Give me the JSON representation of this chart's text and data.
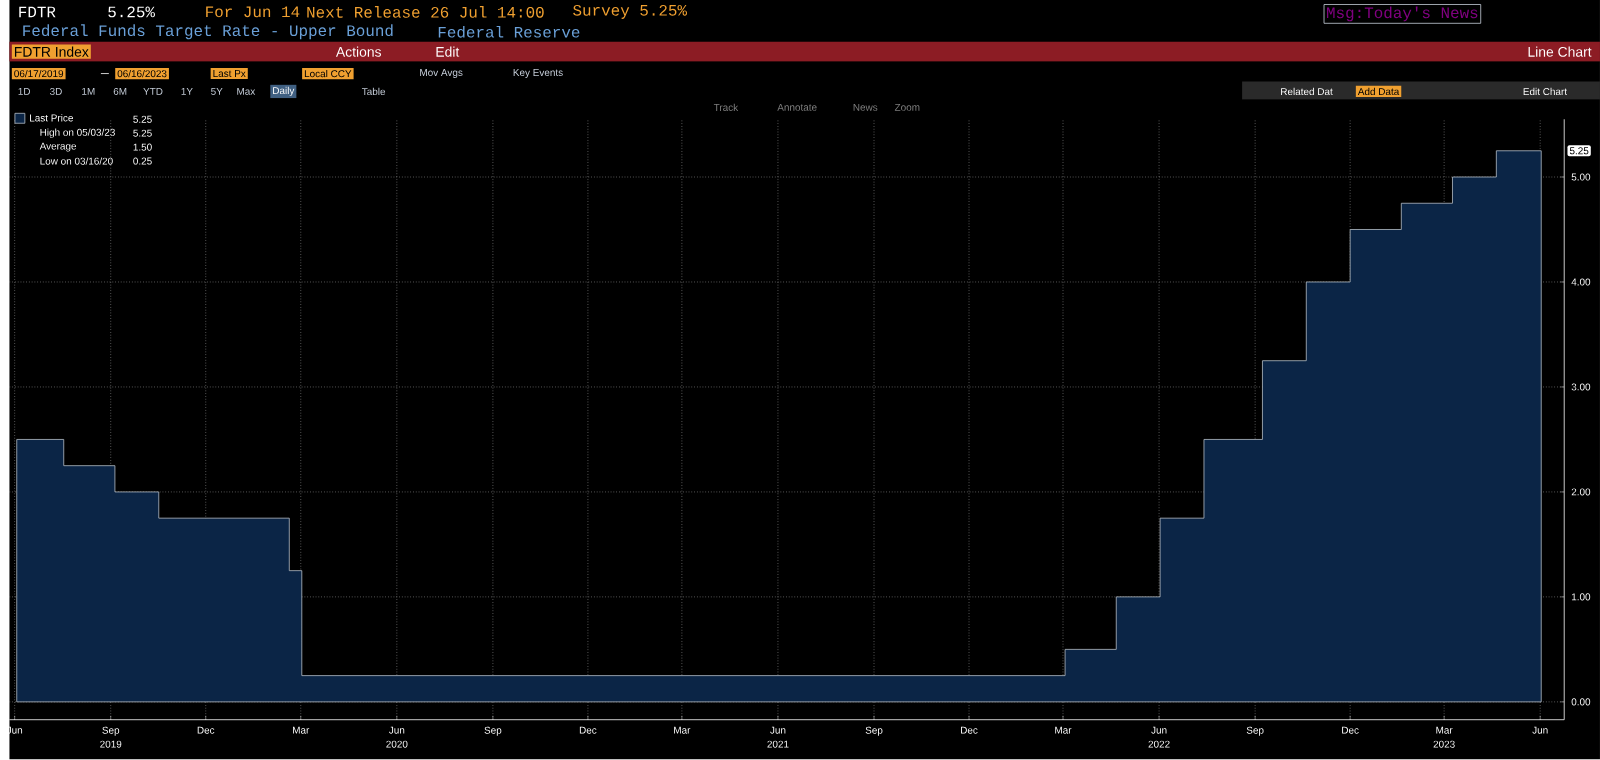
{
  "chart_data": {
    "type": "area",
    "title": "Federal Funds Target Rate - Upper Bound",
    "subtitle": "Federal Reserve",
    "x": [
      "2019-06-17",
      "2019-08-01",
      "2019-09-19",
      "2019-10-31",
      "2020-03-04",
      "2020-03-16",
      "2022-03-17",
      "2022-05-05",
      "2022-06-16",
      "2022-07-28",
      "2022-09-22",
      "2022-11-03",
      "2022-12-15",
      "2023-02-02",
      "2023-03-23",
      "2023-05-04",
      "2023-06-16"
    ],
    "series": [
      {
        "name": "Last Price",
        "color": "#0b2546",
        "values": [
          2.5,
          2.25,
          2.0,
          1.75,
          1.25,
          0.25,
          0.5,
          1.0,
          1.75,
          2.5,
          3.25,
          4.0,
          4.5,
          4.75,
          5.0,
          5.25,
          5.25
        ]
      }
    ],
    "xlim": [
      "2019-06-10",
      "2023-07-08"
    ],
    "xticks": [
      {
        "value": "2019-06-15",
        "label": "Jun"
      },
      {
        "value": "2019-09-15",
        "label": "Sep"
      },
      {
        "value": "2019-12-15",
        "label": "Dec"
      },
      {
        "value": "2020-03-15",
        "label": "Mar"
      },
      {
        "value": "2020-06-15",
        "label": "Jun"
      },
      {
        "value": "2020-09-15",
        "label": "Sep"
      },
      {
        "value": "2020-12-15",
        "label": "Dec"
      },
      {
        "value": "2021-03-15",
        "label": "Mar"
      },
      {
        "value": "2021-06-15",
        "label": "Jun"
      },
      {
        "value": "2021-09-15",
        "label": "Sep"
      },
      {
        "value": "2021-12-15",
        "label": "Dec"
      },
      {
        "value": "2022-03-15",
        "label": "Mar"
      },
      {
        "value": "2022-06-15",
        "label": "Jun"
      },
      {
        "value": "2022-09-15",
        "label": "Sep"
      },
      {
        "value": "2022-12-15",
        "label": "Dec"
      },
      {
        "value": "2023-03-15",
        "label": "Mar"
      },
      {
        "value": "2023-06-15",
        "label": "Jun"
      }
    ],
    "x2lim": [
      "2019-06-10",
      "2023-07-08"
    ],
    "x2ticks": [
      {
        "value": "2019-09-15",
        "label": "2019"
      },
      {
        "value": "2020-06-15",
        "label": "2020"
      },
      {
        "value": "2021-06-15",
        "label": "2021"
      },
      {
        "value": "2022-06-15",
        "label": "2022"
      },
      {
        "value": "2023-03-15",
        "label": "2023"
      }
    ],
    "ylim": [
      -0.17,
      5.55
    ],
    "yticks": [
      {
        "value": 0,
        "label": "0.00"
      },
      {
        "value": 1,
        "label": "1.00"
      },
      {
        "value": 2,
        "label": "2.00"
      },
      {
        "value": 3,
        "label": "3.00"
      },
      {
        "value": 4,
        "label": "4.00"
      },
      {
        "value": 5,
        "label": "5.00"
      }
    ],
    "grid": true,
    "legend": "top left",
    "annotations": [
      "FDTR",
      "5.25%",
      "For Jun 14",
      "Next Release 26 Jul 14:00",
      "Survey 5.25%",
      "FDTR Index",
      "Actions",
      "Edit",
      "Line Chart",
      "06/17/2019",
      "06/16/2023",
      "Last Px",
      "Local CCY",
      "Mov Avgs",
      "Key Events",
      "1D",
      "3D",
      "1M",
      "6M",
      "YTD",
      "1Y",
      "5Y",
      "Max",
      "Daily",
      "Table",
      "Track",
      "Annotate",
      "News",
      "Zoom",
      "Related Dat",
      "Add Data",
      "Edit Chart",
      "Msg:Today's News",
      "5.25",
      "High on 05/03/23",
      "5.25",
      "Average",
      "1.50",
      "Low on 03/16/20",
      "0.25",
      {
        "text": "5.25",
        "x": "2023-06-16",
        "y": 5.25
      }
    ]
  }
}
